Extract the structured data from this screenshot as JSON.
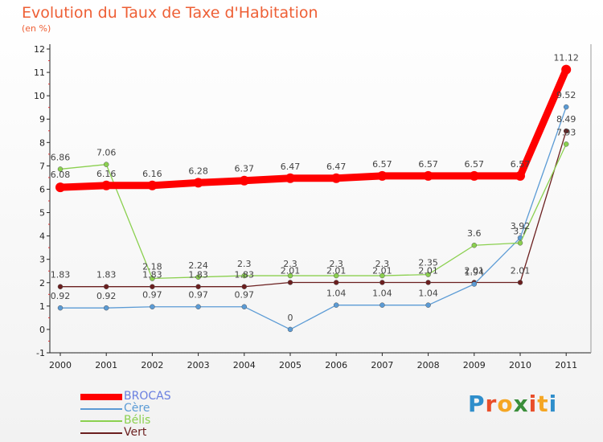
{
  "header": {
    "title": "Evolution du Taux de Taxe d'Habitation",
    "subtitle": "(en %)"
  },
  "logo": {
    "text": "Proxiti",
    "colors": [
      "#2f8ecb",
      "#e94e2a",
      "#f5a623",
      "#3a8e3a",
      "#e94e2a",
      "#f5a623",
      "#2f8ecb"
    ]
  },
  "chart_data": {
    "type": "line",
    "title": "Evolution du Taux de Taxe d'Habitation",
    "subtitle": "(en %)",
    "xlabel": "",
    "ylabel": "",
    "x": [
      "2000",
      "2001",
      "2002",
      "2003",
      "2004",
      "2005",
      "2006",
      "2007",
      "2008",
      "2009",
      "2010",
      "2011"
    ],
    "yticks": [
      "-1",
      "0",
      "1",
      "2",
      "3",
      "4",
      "5",
      "6",
      "7",
      "8",
      "9",
      "10",
      "11",
      "12"
    ],
    "ylim": [
      -1,
      12
    ],
    "grid": false,
    "legend_position": "bottom-left",
    "series": [
      {
        "name": "BROCAS",
        "color": "#ff0000",
        "values": [
          6.08,
          6.16,
          6.16,
          6.28,
          6.37,
          6.47,
          6.47,
          6.57,
          6.57,
          6.57,
          6.57,
          11.12
        ],
        "labels": [
          "6.08",
          "6.16",
          "6.16",
          "6.28",
          "6.37",
          "6.47",
          "6.47",
          "6.57",
          "6.57",
          "6.57",
          "6.57",
          "11.12"
        ]
      },
      {
        "name": "Cère",
        "color": "#5b9bd5",
        "values": [
          0.92,
          0.92,
          0.97,
          0.97,
          0.97,
          0,
          1.04,
          1.04,
          1.04,
          1.94,
          3.92,
          9.52
        ],
        "labels": [
          "0.92",
          "0.92",
          "0.97",
          "0.97",
          "0.97",
          "0",
          "1.04",
          "1.04",
          "1.04",
          "1.94",
          "3.92",
          "9.52"
        ]
      },
      {
        "name": "Bélis",
        "color": "#8bd04f",
        "values": [
          6.86,
          7.06,
          2.18,
          2.24,
          2.3,
          2.3,
          2.3,
          2.3,
          2.35,
          3.6,
          3.7,
          7.93
        ],
        "labels": [
          "6.86",
          "7.06",
          "2.18",
          "2.24",
          "2.3",
          "2.3",
          "2.3",
          "2.3",
          "2.35",
          "3.6",
          "3.7",
          "7.93"
        ]
      },
      {
        "name": "Vert",
        "color": "#6b1f1f",
        "values": [
          1.83,
          1.83,
          1.83,
          1.83,
          1.83,
          2.01,
          2.01,
          2.01,
          2.01,
          2.01,
          2.01,
          8.49
        ],
        "labels": [
          "1.83",
          "1.83",
          "1.83",
          "1.83",
          "1.83",
          "2.01",
          "2.01",
          "2.01",
          "2.01",
          "2.01",
          "2.01",
          "8.49"
        ]
      }
    ]
  }
}
